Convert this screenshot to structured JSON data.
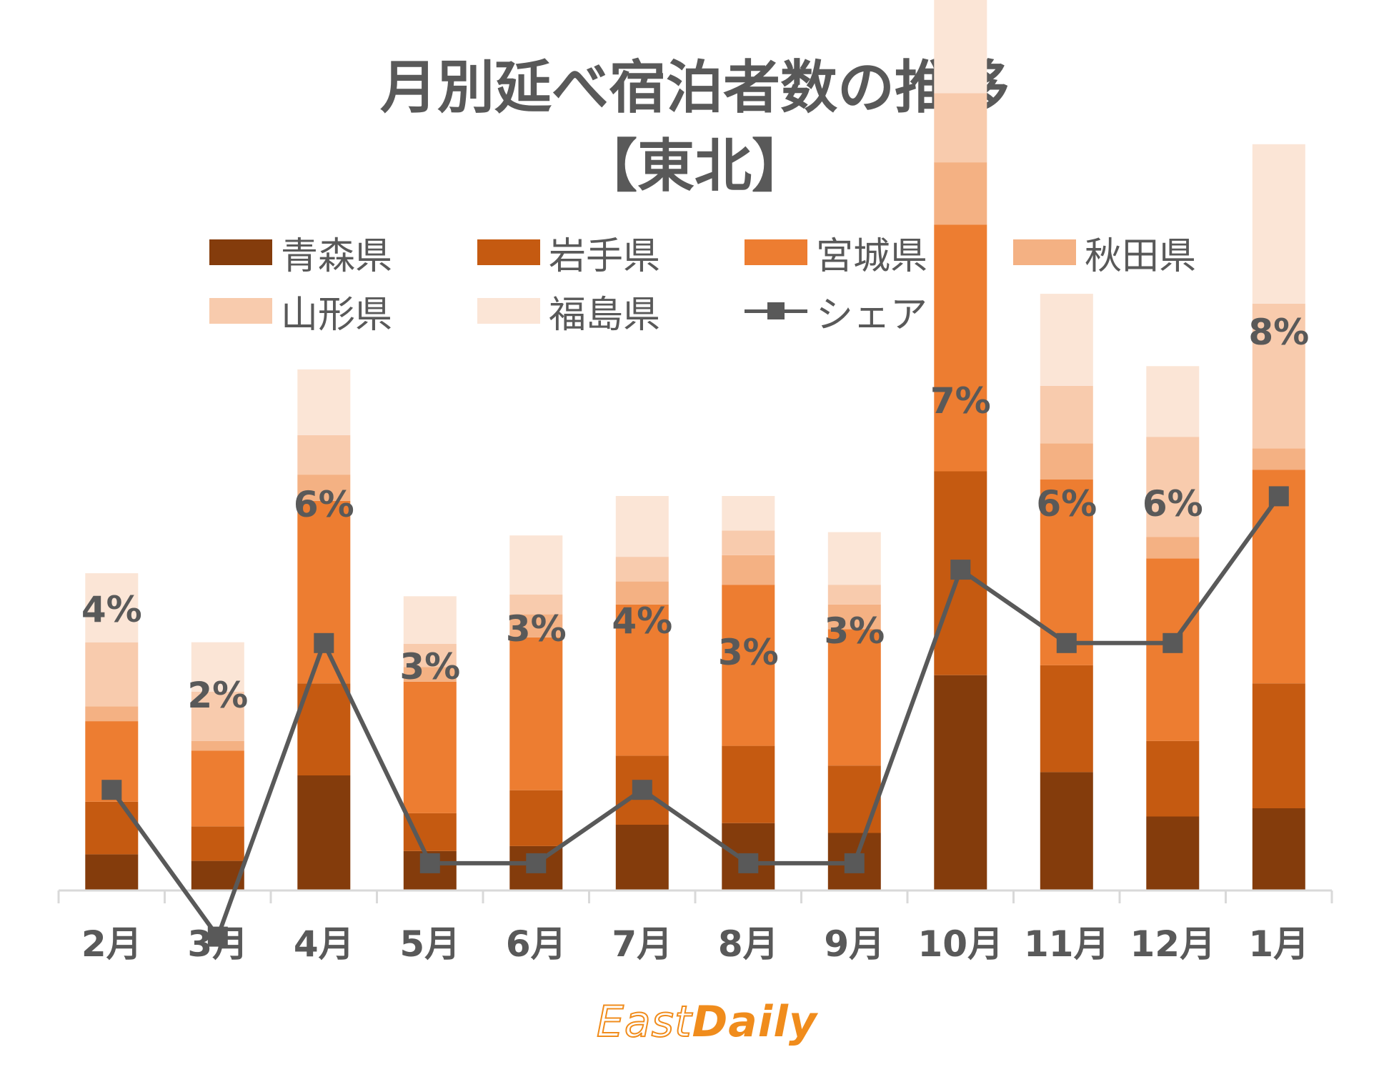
{
  "title_line1": "月別延べ宿泊者数の推移",
  "title_line2": "【東北】",
  "logo": {
    "part1": "East",
    "part2": "Daily"
  },
  "colors": {
    "aomori": "#843c0c",
    "iwate": "#c55a11",
    "miyagi": "#ed7d31",
    "akita": "#f4b183",
    "yamagata": "#f8cbad",
    "fukushima": "#fbe5d6",
    "share": "#595959",
    "axis": "#d9d9d9",
    "text": "#595959"
  },
  "chart_data": {
    "type": "bar",
    "stacked": true,
    "categories": [
      "2月",
      "3月",
      "4月",
      "5月",
      "6月",
      "7月",
      "8月",
      "9月",
      "10月",
      "11月",
      "12月",
      "1月"
    ],
    "series": [
      {
        "name": "青森県",
        "color": "#843c0c",
        "values": [
          22,
          18,
          70,
          24,
          27,
          40,
          41,
          35,
          131,
          72,
          45,
          50
        ]
      },
      {
        "name": "岩手県",
        "color": "#c55a11",
        "values": [
          32,
          21,
          56,
          23,
          34,
          42,
          47,
          41,
          124,
          65,
          46,
          76
        ]
      },
      {
        "name": "宮城県",
        "color": "#ed7d31",
        "values": [
          49,
          46,
          111,
          80,
          93,
          92,
          98,
          83,
          150,
          113,
          111,
          130
        ]
      },
      {
        "name": "秋田県",
        "color": "#f4b183",
        "values": [
          9,
          6,
          16,
          9,
          14,
          14,
          18,
          15,
          38,
          22,
          13,
          13
        ]
      },
      {
        "name": "山形県",
        "color": "#f8cbad",
        "values": [
          39,
          30,
          24,
          14,
          12,
          15,
          15,
          12,
          42,
          35,
          61,
          88
        ]
      },
      {
        "name": "福島県",
        "color": "#fbe5d6",
        "values": [
          42,
          30,
          40,
          29,
          36,
          37,
          21,
          32,
          57,
          56,
          43,
          97
        ]
      }
    ],
    "line_series": {
      "name": "シェア",
      "color": "#595959",
      "values": [
        4,
        2,
        6,
        3,
        3,
        4,
        3,
        3,
        7,
        6,
        6,
        8
      ],
      "labels": [
        "4%",
        "2%",
        "6%",
        "3%",
        "3%",
        "4%",
        "3%",
        "3%",
        "7%",
        "6%",
        "6%",
        "8%"
      ]
    },
    "legend_position": "top",
    "grid": false
  }
}
